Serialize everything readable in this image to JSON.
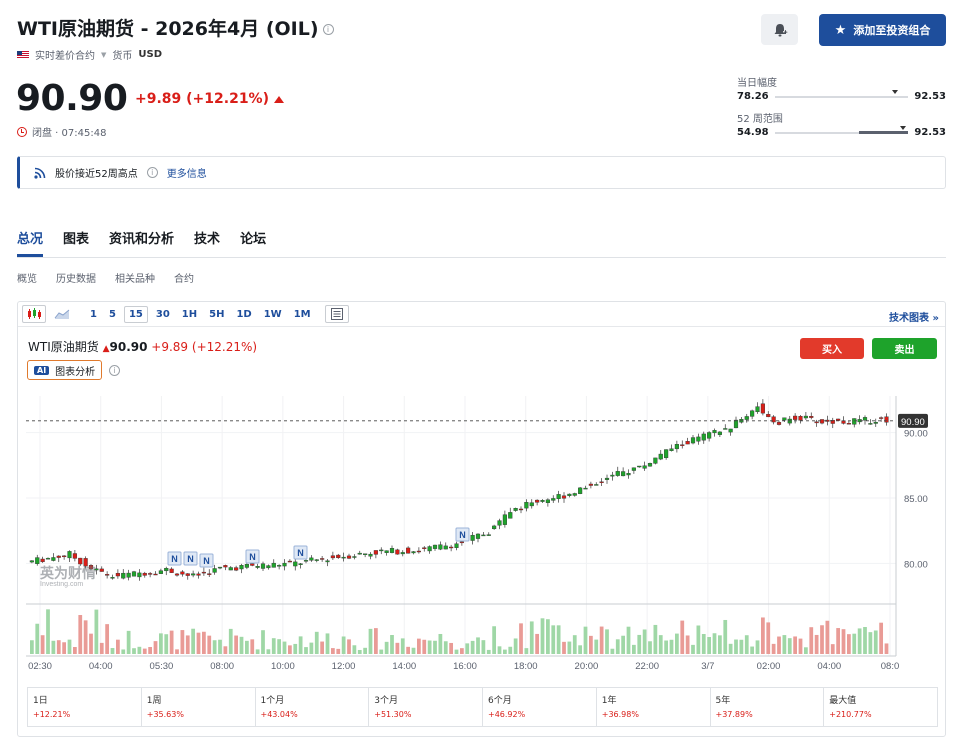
{
  "header": {
    "title": "WTI原油期货 - 2026年4月 (OIL)",
    "contract_type": "实时差价合约",
    "currency_label": "货币",
    "currency": "USD",
    "add_portfolio_label": "添加至投资组合"
  },
  "quote": {
    "price": "90.90",
    "change": "+9.89 (+12.21%)",
    "status": "闭盘 · 07:45:48"
  },
  "ranges": {
    "day": {
      "label": "当日幅度",
      "low": "78.26",
      "high": "92.53",
      "current_fraction": 0.89
    },
    "week52": {
      "label": "52 周范围",
      "low": "54.98",
      "high": "92.53",
      "current_fraction": 0.95
    }
  },
  "notice": {
    "text": "股价接近52周高点",
    "more": "更多信息"
  },
  "tabs": [
    "总况",
    "图表",
    "资讯和分析",
    "技术",
    "论坛"
  ],
  "subtabs": [
    "概览",
    "历史数据",
    "相关品种",
    "合约"
  ],
  "toolbar": {
    "timeframes": [
      "1",
      "5",
      "15",
      "30",
      "1H",
      "5H",
      "1D",
      "1W",
      "1M"
    ],
    "selected_timeframe": "15",
    "tech_chart_label": "技术图表 »"
  },
  "chart_header": {
    "name": "WTI原油期货",
    "price": "90.90",
    "change": "+9.89 (+12.21%)",
    "ai_tag": "AI",
    "ai_label": "图表分析",
    "buy_label": "买入",
    "sell_label": "卖出"
  },
  "watermark": {
    "cn": "英为财情",
    "en": "Investing.com"
  },
  "colors": {
    "up": "#1ea32b",
    "down": "#d91e18",
    "accent": "#1e4e9c"
  },
  "chart_data": {
    "type": "candlestick",
    "x_ticks": [
      "02:30",
      "04:00",
      "05:30",
      "08:00",
      "10:00",
      "12:00",
      "14:00",
      "16:00",
      "18:00",
      "20:00",
      "22:00",
      "3/7",
      "02:00",
      "04:00",
      "08:0"
    ],
    "y_ticks": [
      "80.00",
      "85.00",
      "90.00"
    ],
    "ylim": [
      77.5,
      92.8
    ],
    "last_price_label": "90.90",
    "news_markers": 6
  },
  "performance": [
    {
      "label": "1日",
      "value": "+12.21%"
    },
    {
      "label": "1周",
      "value": "+35.63%"
    },
    {
      "label": "1个月",
      "value": "+43.04%"
    },
    {
      "label": "3个月",
      "value": "+51.30%"
    },
    {
      "label": "6个月",
      "value": "+46.92%"
    },
    {
      "label": "1年",
      "value": "+36.98%"
    },
    {
      "label": "5年",
      "value": "+37.89%"
    },
    {
      "label": "最大值",
      "value": "+210.77%"
    }
  ]
}
